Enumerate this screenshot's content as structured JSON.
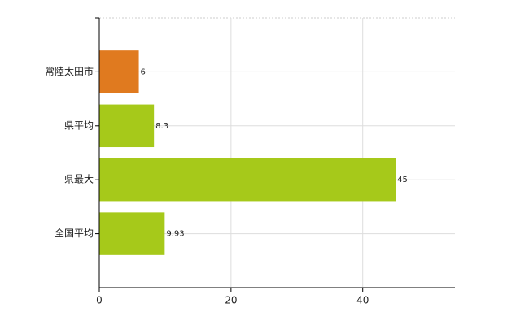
{
  "chart_data": {
    "type": "bar",
    "orientation": "horizontal",
    "categories": [
      "常陸太田市",
      "県平均",
      "県最大",
      "全国平均"
    ],
    "values": [
      6,
      8.3,
      45,
      9.93
    ],
    "colors": [
      "#e07a1f",
      "#a6c91a",
      "#a6c91a",
      "#a6c91a"
    ],
    "xlim": [
      0,
      54
    ],
    "xticks": [
      0,
      20,
      40
    ],
    "grid": true
  }
}
